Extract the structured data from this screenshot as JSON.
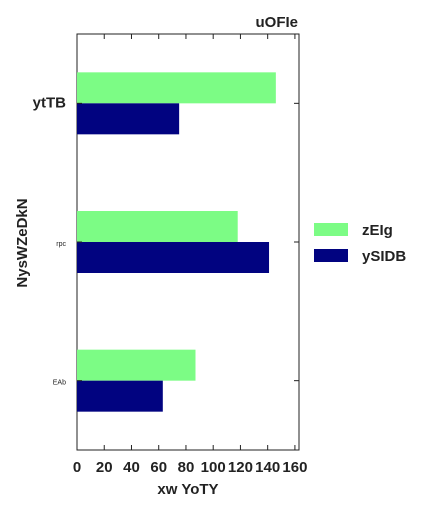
{
  "chart_data": {
    "type": "bar",
    "orientation": "horizontal",
    "title": "uOFIe",
    "xlabel": "xw YoTY",
    "ylabel": "NysWZeDkN",
    "categories": [
      "ytTB",
      "rpc",
      "EAb"
    ],
    "series": [
      {
        "name": "zEIg",
        "values": [
          146,
          118,
          87
        ],
        "color": "#7cfc85"
      },
      {
        "name": "ySIDB",
        "values": [
          75,
          141,
          63
        ],
        "color": "#010380"
      }
    ],
    "xlim": [
      0,
      163
    ],
    "xticks": [
      0,
      20,
      40,
      60,
      80,
      100,
      120,
      140,
      160
    ],
    "grid": false,
    "legend_position": "right"
  }
}
